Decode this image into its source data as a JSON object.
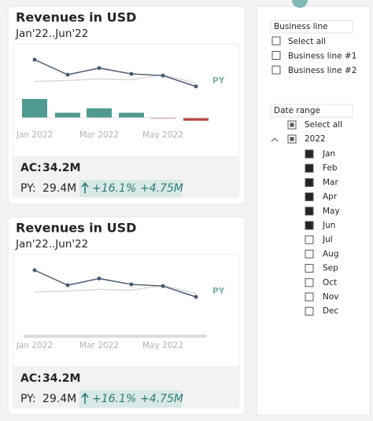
{
  "cards": [
    {
      "title": "Revenues in USD",
      "subtitle": "Jan'22..Jun'22",
      "chart": {
        "type": "line",
        "categories": [
          "Jan 2022",
          null,
          "Mar 2022",
          null,
          "May 2022",
          null
        ],
        "series": [
          {
            "values": [
              7.3,
              5.5,
              6.3,
              5.6,
              5.4,
              4.1
            ],
            "color": "#4a5a70"
          },
          {
            "name": "PY",
            "values": [
              4.7,
              4.8,
              5.0,
              4.9,
              5.5,
              4.5
            ],
            "color": "#d9d9d9"
          }
        ],
        "variance": {
          "values": [
            2.6,
            0.7,
            1.3,
            0.7,
            -0.1,
            -0.4
          ],
          "positive_color": "#4e9a8f",
          "negative_color": "#b5463c"
        }
      },
      "kpi": {
        "ac_label": "AC:",
        "ac_value": "34.2M",
        "py_label": "PY:",
        "py_value": "29.4M",
        "delta_pct": "+16.1%",
        "delta_abs": "+4.75M"
      }
    },
    {
      "title": "Revenues in USD",
      "subtitle": "Jan'22..Jun'22",
      "chart": {
        "type": "line",
        "categories": [
          "Jan 2022",
          null,
          "Mar 2022",
          null,
          "May 2022",
          null
        ],
        "series": [
          {
            "values": [
              7.3,
              5.5,
              6.3,
              5.6,
              5.4,
              4.1
            ],
            "color": "#4a5a70"
          },
          {
            "name": "PY",
            "values": [
              4.7,
              4.8,
              5.0,
              4.9,
              5.5,
              4.5
            ],
            "color": "#d9d9d9"
          }
        ]
      },
      "kpi": {
        "ac_label": "AC:",
        "ac_value": "34.2M",
        "py_label": "PY:",
        "py_value": "29.4M",
        "delta_pct": "+16.1%",
        "delta_abs": "+4.75M"
      }
    }
  ],
  "slicers": [
    {
      "title": "Business line",
      "items": [
        {
          "label": "Select all",
          "checked": false
        },
        {
          "label": "Business line #1",
          "checked": false
        },
        {
          "label": "Business line #2",
          "checked": false
        }
      ]
    },
    {
      "title": "Date range",
      "select_all": {
        "label": "Select all",
        "state": "partial"
      },
      "year": {
        "label": "2022",
        "state": "partial",
        "months": [
          {
            "label": "Jan",
            "checked": true
          },
          {
            "label": "Feb",
            "checked": true
          },
          {
            "label": "Mar",
            "checked": true
          },
          {
            "label": "Apr",
            "checked": true
          },
          {
            "label": "May",
            "checked": true
          },
          {
            "label": "Jun",
            "checked": true
          },
          {
            "label": "Jul",
            "checked": false
          },
          {
            "label": "Aug",
            "checked": false
          },
          {
            "label": "Sep",
            "checked": false
          },
          {
            "label": "Oct",
            "checked": false
          },
          {
            "label": "Nov",
            "checked": false
          },
          {
            "label": "Dec",
            "checked": false
          }
        ]
      }
    }
  ]
}
